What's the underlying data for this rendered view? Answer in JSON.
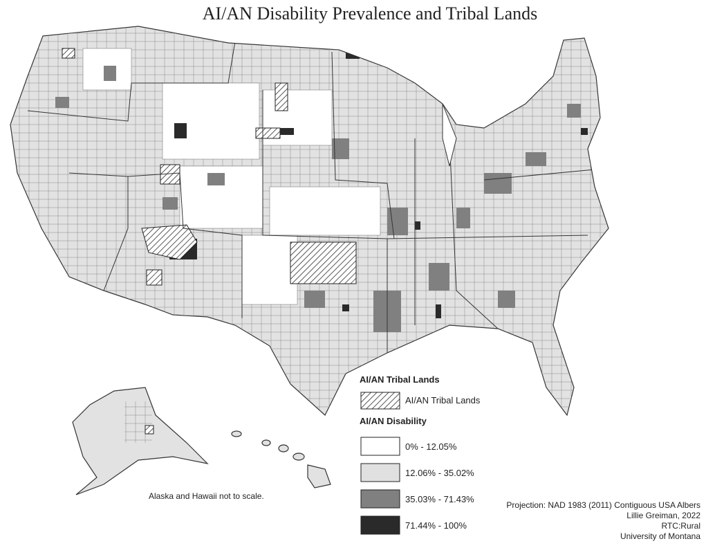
{
  "title": "AI/AN Disability Prevalence and Tribal Lands",
  "legend": {
    "tribal_title": "AI/AN Tribal Lands",
    "tribal_item": "AI/AN Tribal Lands",
    "disability_title": "AI/AN Disability",
    "disability_items": [
      {
        "label": "0% - 12.05%",
        "color": "#ffffff"
      },
      {
        "label": "12.06% - 35.02%",
        "color": "#e0e0e0"
      },
      {
        "label": "35.03% - 71.43%",
        "color": "#808080"
      },
      {
        "label": "71.44% - 100%",
        "color": "#2a2a2a"
      }
    ]
  },
  "note": "Alaska and Hawaii not to scale.",
  "credits": [
    "Projection: NAD 1983 (2011) Contiguous USA Albers",
    "Lillie Greiman, 2022",
    "RTC:Rural",
    "University of Montana"
  ]
}
